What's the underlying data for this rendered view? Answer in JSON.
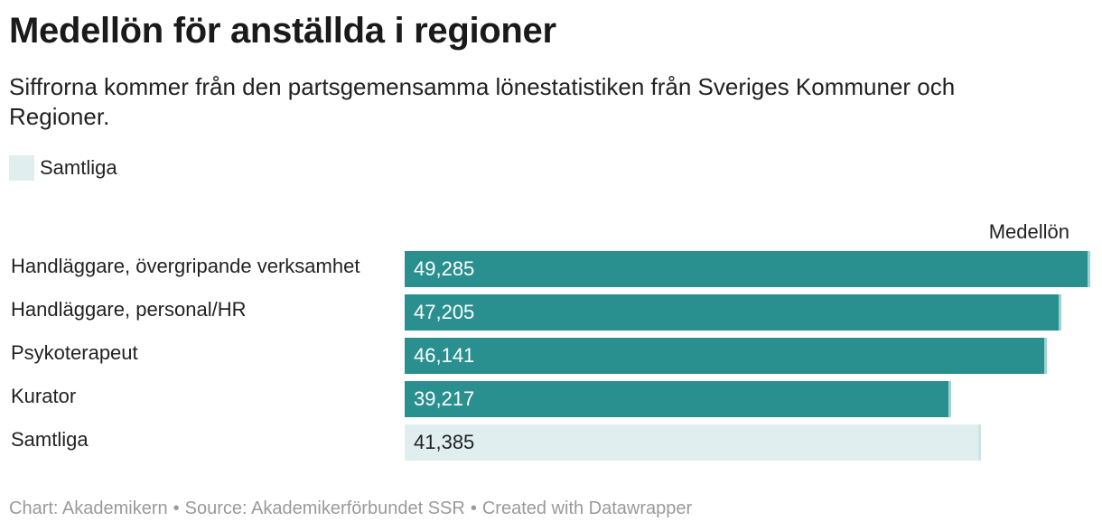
{
  "title": "Medellön för anställda i regioner",
  "subtitle": "Siffrorna kommer från den partsgemensamma lönestatistiken från Sveriges Kommuner och Regioner.",
  "legend": {
    "label": "Samtliga",
    "color": "#e0eeef"
  },
  "column_header": "Medellön",
  "colors": {
    "bar_main": "#2a8f8f",
    "bar_edge": "#9fd3d0",
    "bar_highlight": "#e0eeef",
    "bar_highlight_edge": "#cfe3e4",
    "value_on_dark": "#ffffff",
    "value_on_light": "#222222"
  },
  "chart_data": {
    "type": "bar",
    "orientation": "horizontal",
    "title": "Medellön för anställda i regioner",
    "xlabel": "Medellön",
    "ylabel": "",
    "xlim": [
      0,
      49285
    ],
    "categories": [
      "Handläggare, övergripande verksamhet",
      "Handläggare, personal/HR",
      "Psykoterapeut",
      "Kurator",
      "Samtliga"
    ],
    "values": [
      49285,
      47205,
      46141,
      39217,
      41385
    ],
    "labels": [
      "49,285",
      "47,205",
      "46,141",
      "39,217",
      "41,385"
    ],
    "highlight": [
      false,
      false,
      false,
      false,
      true
    ]
  },
  "footer": {
    "chart": "Chart: Akademikern",
    "source": "Source: Akademikerförbundet SSR",
    "created": "Created with Datawrapper",
    "separator": "•"
  }
}
